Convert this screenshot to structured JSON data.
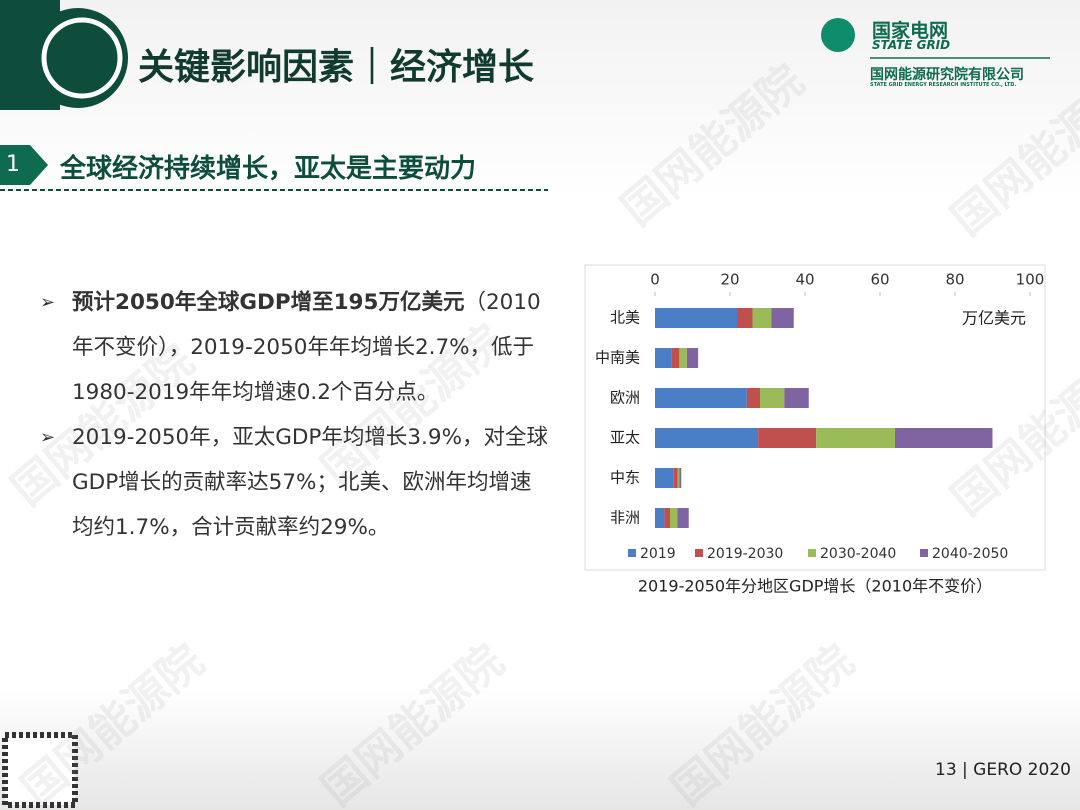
{
  "header": {
    "title": "关键影响因素｜经济增长",
    "logo_cn": "国家电网",
    "logo_en": "STATE GRID",
    "org_cn": "国网能源研究院有限公司",
    "org_en": "STATE GRID ENERGY RESEARCH INSTITUTE CO., LTD."
  },
  "section": {
    "number": "1",
    "title": "全球经济持续增长，亚太是主要动力"
  },
  "bullets": [
    {
      "bold": "预计2050年全球GDP增至195万亿美元",
      "text": "（2010年不变价），2019-2050年年均增长2.7%，低于1980-2019年年均增速0.2个百分点。"
    },
    {
      "bold": "",
      "text": "2019-2050年，亚太GDP年均增长3.9%，对全球GDP增长的贡献率达57%；北美、欧洲年均增速均约1.7%，合计贡献率约29%。"
    }
  ],
  "chart_data": {
    "type": "stacked-barh",
    "unit_label": "万亿美元",
    "caption": "2019-2050年分地区GDP增长（2010年不变价）",
    "categories": [
      "北美",
      "中南美",
      "欧洲",
      "亚太",
      "中东",
      "非洲"
    ],
    "series": [
      {
        "name": "2019",
        "color": "#4a7ec7",
        "values": [
          22,
          4.5,
          24.5,
          27.5,
          5,
          2.5
        ]
      },
      {
        "name": "2019-2030",
        "color": "#c0504d",
        "values": [
          4,
          2,
          3.5,
          15.5,
          1,
          1.5
        ]
      },
      {
        "name": "2030-2040",
        "color": "#9bbb59",
        "values": [
          5,
          2,
          6.5,
          21,
          0.5,
          2
        ]
      },
      {
        "name": "2040-2050",
        "color": "#8064a2",
        "values": [
          6,
          3,
          6.5,
          26,
          0.5,
          3
        ]
      }
    ],
    "xlim": [
      0,
      100
    ],
    "xticks": [
      0,
      20,
      40,
      60,
      80,
      100
    ],
    "legend": "bottom"
  },
  "footer": {
    "page": "13 | GERO 2020"
  },
  "watermark": "国网能源院"
}
